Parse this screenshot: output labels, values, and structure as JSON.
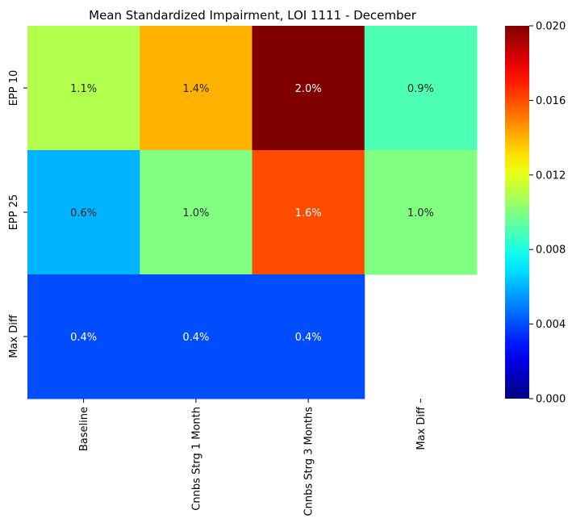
{
  "chart_data": {
    "type": "heatmap",
    "title": "Mean Standardized Impairment, LOI 1111 - December",
    "columns": [
      "Baseline",
      "Cnnbs Strg 1 Month",
      "Cnnbs Strg 3 Months",
      "Max Diff"
    ],
    "rows": [
      "EPP 10",
      "EPP 25",
      "Max Diff"
    ],
    "values": [
      [
        0.011,
        0.014,
        0.02,
        0.009
      ],
      [
        0.006,
        0.01,
        0.016,
        0.01
      ],
      [
        0.004,
        0.004,
        0.004,
        null
      ]
    ],
    "labels": [
      [
        "1.1%",
        "1.4%",
        "2.0%",
        "0.9%"
      ],
      [
        "0.6%",
        "1.0%",
        "1.6%",
        "1.0%"
      ],
      [
        "0.4%",
        "0.4%",
        "0.4%",
        ""
      ]
    ],
    "colormap": "jet",
    "colorbar": {
      "min": 0.0,
      "max": 0.02,
      "ticks": [
        "0.000",
        "0.004",
        "0.008",
        "0.012",
        "0.016",
        "0.020"
      ]
    },
    "xlabel": "",
    "ylabel": ""
  }
}
